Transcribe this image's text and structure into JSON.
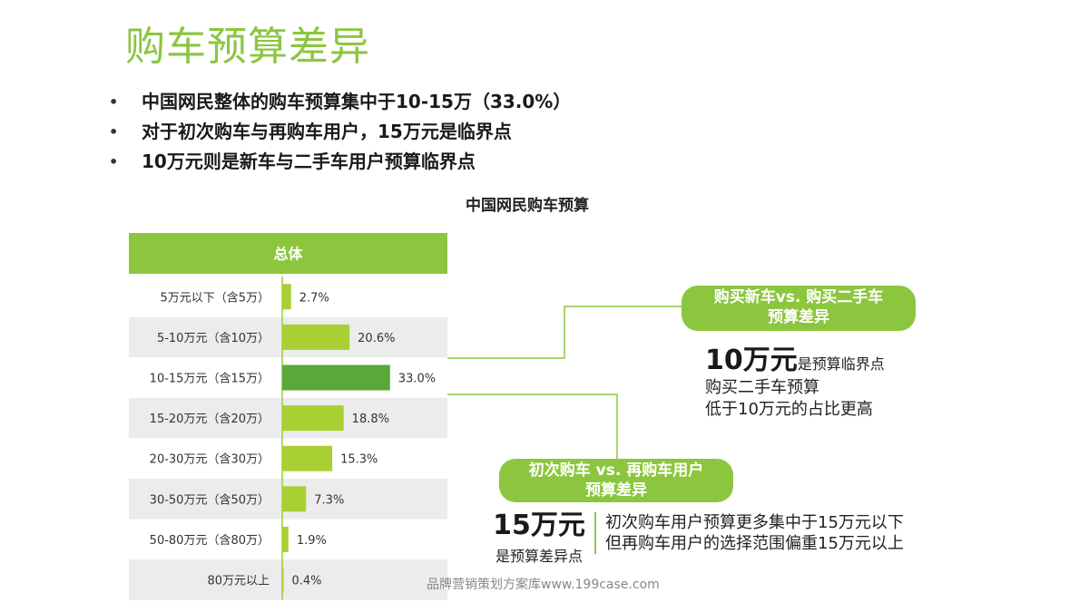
{
  "title": "购车预算差异",
  "bullets": [
    "中国网民整体的购车预算集中于10-15万（33.0%）",
    "对于初次购车与再购车用户，15万元是临界点",
    "10万元则是新车与二手车用户预算临界点"
  ],
  "bullet_symbol": "•",
  "chart_data": {
    "type": "bar",
    "orientation": "horizontal",
    "title": "中国网民购车预算",
    "header": "总体",
    "categories": [
      "5万元以下（含5万）",
      "5-10万元（含10万）",
      "10-15万元（含15万）",
      "15-20万元（含20万）",
      "20-30万元（含30万）",
      "30-50万元（含50万）",
      "50-80万元（含80万）",
      "80万元以上"
    ],
    "values": [
      2.7,
      20.6,
      33.0,
      18.8,
      15.3,
      7.3,
      1.9,
      0.4
    ],
    "value_labels": [
      "2.7%",
      "20.6%",
      "33.0%",
      "18.8%",
      "15.3%",
      "7.3%",
      "1.9%",
      "0.4%"
    ],
    "unit": "%",
    "highlight_index": 2,
    "colors": {
      "bar": "#a8d032",
      "highlight": "#5aa83a",
      "header": "#8cc63f",
      "stripe": "#ececec",
      "axis": "#9ccb3b"
    }
  },
  "callout_new": {
    "label_lines": [
      "购买新车vs. 购买二手车",
      "预算差异"
    ],
    "big": "10万元",
    "big_suffix": "是预算临界点",
    "lines": [
      "购买二手车预算",
      "低于10万元的占比更高"
    ]
  },
  "callout_first": {
    "label_lines": [
      "初次购车 vs. 再购车用户",
      "预算差异"
    ],
    "big": "15万元",
    "sub": "是预算差异点",
    "lines": [
      "初次购车用户预算更多集中于15万元以下",
      "但再购车用户的选择范围偏重15万元以上"
    ]
  },
  "watermark": "品牌营销策划方案库www.199case.com"
}
